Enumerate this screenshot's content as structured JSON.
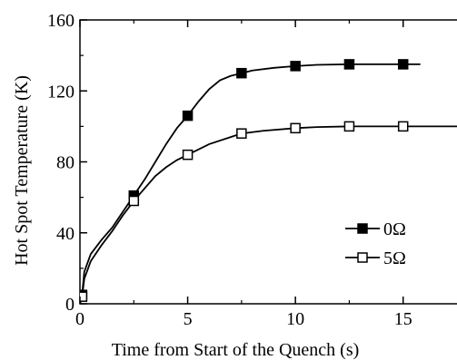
{
  "chart_data": {
    "type": "line",
    "title": "",
    "xlabel": "Time from Start of the Quench (s)",
    "ylabel": "Hot Spot Temperature (K)",
    "xlim": [
      0,
      17.5
    ],
    "ylim": [
      0,
      160
    ],
    "xticks": [
      0,
      5,
      10,
      15
    ],
    "yticks": [
      0,
      40,
      80,
      120,
      160
    ],
    "grid": false,
    "legend_position": "right-middle",
    "series": [
      {
        "name": "0Ω",
        "marker": "filled-square",
        "color": "#000000",
        "points": [
          {
            "x": 0.1,
            "y": 5
          },
          {
            "x": 2.5,
            "y": 61
          },
          {
            "x": 5,
            "y": 106
          },
          {
            "x": 7.5,
            "y": 130
          },
          {
            "x": 10,
            "y": 134
          },
          {
            "x": 12.5,
            "y": 135
          },
          {
            "x": 15,
            "y": 135
          }
        ],
        "curve": [
          [
            0,
            0
          ],
          [
            0.1,
            5
          ],
          [
            0.2,
            18
          ],
          [
            0.5,
            28
          ],
          [
            1,
            36
          ],
          [
            1.5,
            43
          ],
          [
            2,
            52
          ],
          [
            2.5,
            61
          ],
          [
            3,
            70
          ],
          [
            3.5,
            80
          ],
          [
            4,
            90
          ],
          [
            4.5,
            99
          ],
          [
            5,
            106
          ],
          [
            5.5,
            114
          ],
          [
            6,
            121
          ],
          [
            6.5,
            126
          ],
          [
            7,
            128.5
          ],
          [
            7.5,
            130
          ],
          [
            8,
            131.5
          ],
          [
            9,
            133
          ],
          [
            10,
            134
          ],
          [
            11,
            134.7
          ],
          [
            12.5,
            135
          ],
          [
            14,
            135
          ],
          [
            15,
            135
          ],
          [
            15.8,
            135
          ]
        ]
      },
      {
        "name": "5Ω",
        "marker": "open-square",
        "color": "#000000",
        "points": [
          {
            "x": 0.1,
            "y": 4
          },
          {
            "x": 2.5,
            "y": 58
          },
          {
            "x": 5,
            "y": 84
          },
          {
            "x": 7.5,
            "y": 96
          },
          {
            "x": 10,
            "y": 99
          },
          {
            "x": 12.5,
            "y": 100
          },
          {
            "x": 15,
            "y": 100
          }
        ],
        "curve": [
          [
            0,
            0
          ],
          [
            0.1,
            4
          ],
          [
            0.2,
            14
          ],
          [
            0.5,
            24
          ],
          [
            1,
            33
          ],
          [
            1.5,
            41
          ],
          [
            2,
            50
          ],
          [
            2.5,
            58
          ],
          [
            3,
            65
          ],
          [
            3.5,
            72
          ],
          [
            4,
            77
          ],
          [
            4.5,
            81
          ],
          [
            5,
            84
          ],
          [
            6,
            90
          ],
          [
            7,
            94
          ],
          [
            7.5,
            96
          ],
          [
            8.5,
            97.5
          ],
          [
            10,
            99
          ],
          [
            11,
            99.6
          ],
          [
            12.5,
            100
          ],
          [
            14,
            100
          ],
          [
            15,
            100
          ],
          [
            17.5,
            100
          ]
        ]
      }
    ]
  }
}
